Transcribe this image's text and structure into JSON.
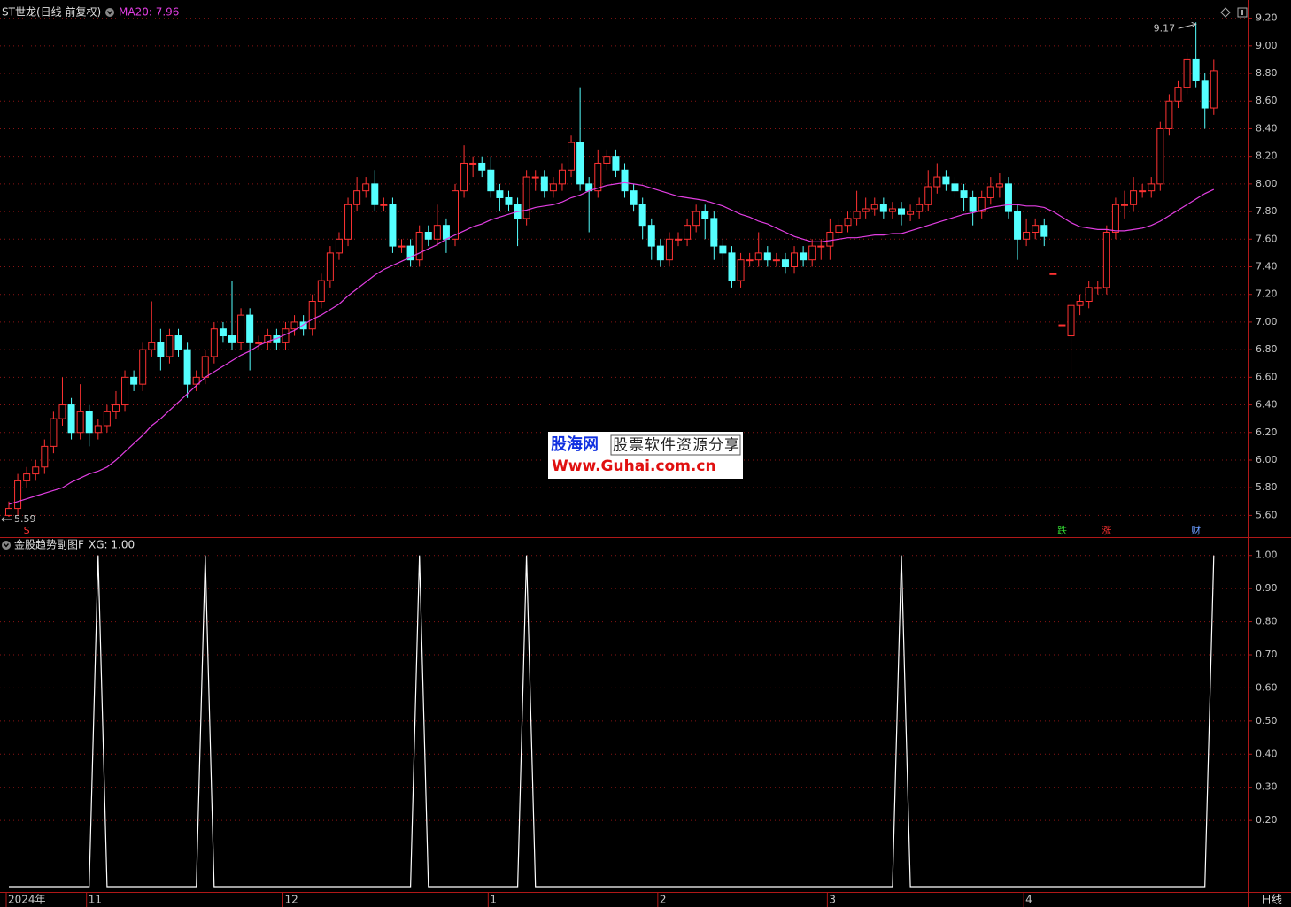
{
  "ui": {
    "period": "日线",
    "watermark_name": "股海网",
    "watermark_slogan": "股票软件资源分享",
    "watermark_url": "Www.Guhai.com.cn"
  },
  "chart_data": [
    {
      "type": "candlestick",
      "title": "ST世龙(日线 前复权)",
      "ma_legend": "MA20: 7.96",
      "up_color": "#ff3232",
      "down_color": "#54ffff",
      "ma_color": "#e23ee2",
      "ylim": [
        5.5,
        9.3
      ],
      "yticks": [
        {
          "value": 5.6,
          "label": "5.60"
        },
        {
          "value": 5.8,
          "label": "5.80"
        },
        {
          "value": 6.0,
          "label": "6.00"
        },
        {
          "value": 6.2,
          "label": "6.20"
        },
        {
          "value": 6.4,
          "label": "6.40"
        },
        {
          "value": 6.6,
          "label": "6.60"
        },
        {
          "value": 6.8,
          "label": "6.80"
        },
        {
          "value": 7.0,
          "label": "7.00"
        },
        {
          "value": 7.2,
          "label": "7.20"
        },
        {
          "value": 7.4,
          "label": "7.40"
        },
        {
          "value": 7.6,
          "label": "7.60"
        },
        {
          "value": 7.8,
          "label": "7.80"
        },
        {
          "value": 8.0,
          "label": "8.00"
        },
        {
          "value": 8.2,
          "label": "8.20"
        },
        {
          "value": 8.4,
          "label": "8.40"
        },
        {
          "value": 8.6,
          "label": "8.60"
        },
        {
          "value": 8.8,
          "label": "8.80"
        },
        {
          "value": 9.0,
          "label": "9.00"
        },
        {
          "value": 9.2,
          "label": "9.20"
        }
      ],
      "grid": true,
      "open": [
        5.6,
        5.65,
        5.85,
        5.9,
        5.95,
        6.1,
        6.3,
        6.4,
        6.2,
        6.35,
        6.2,
        6.25,
        6.35,
        6.4,
        6.6,
        6.55,
        6.8,
        6.85,
        6.75,
        6.9,
        6.8,
        6.55,
        6.6,
        6.75,
        6.95,
        6.9,
        6.85,
        7.05,
        6.85,
        6.85,
        6.9,
        6.85,
        6.95,
        7.0,
        6.95,
        7.15,
        7.3,
        7.5,
        7.6,
        7.85,
        7.95,
        8.0,
        7.85,
        7.85,
        7.55,
        7.55,
        7.45,
        7.65,
        7.6,
        7.7,
        7.6,
        7.95,
        8.15,
        8.15,
        8.1,
        7.95,
        7.9,
        7.85,
        7.75,
        8.05,
        8.05,
        7.95,
        8.0,
        8.1,
        8.3,
        8.0,
        7.95,
        8.15,
        8.2,
        8.1,
        7.95,
        7.85,
        7.7,
        7.55,
        7.45,
        7.6,
        7.6,
        7.7,
        7.8,
        7.75,
        7.55,
        7.5,
        7.3,
        7.45,
        7.45,
        7.5,
        7.45,
        7.45,
        7.4,
        7.5,
        7.45,
        7.55,
        7.55,
        7.65,
        7.7,
        7.75,
        7.8,
        7.82,
        7.85,
        7.8,
        7.82,
        7.78,
        7.8,
        7.85,
        7.98,
        8.05,
        8.0,
        7.95,
        7.9,
        7.8,
        7.9,
        7.98,
        8.0,
        7.8,
        7.6,
        7.65,
        7.7,
        7.35,
        6.98,
        6.9,
        7.12,
        7.15,
        7.25,
        7.25,
        7.65,
        7.85,
        7.85,
        7.95,
        7.95,
        8.0,
        8.4,
        8.6,
        8.7,
        8.9,
        8.75,
        8.55
      ],
      "high": [
        5.7,
        5.9,
        5.95,
        6.0,
        6.15,
        6.35,
        6.6,
        6.45,
        6.55,
        6.4,
        6.3,
        6.4,
        6.5,
        6.65,
        6.65,
        6.85,
        7.15,
        6.95,
        6.95,
        6.95,
        6.85,
        6.65,
        6.8,
        7.0,
        7.0,
        7.3,
        7.1,
        7.1,
        6.9,
        6.95,
        6.95,
        7.0,
        7.05,
        7.05,
        7.2,
        7.35,
        7.55,
        7.65,
        7.9,
        8.05,
        8.05,
        8.1,
        7.9,
        7.9,
        7.6,
        7.6,
        7.7,
        7.7,
        7.85,
        7.75,
        8.0,
        8.28,
        8.2,
        8.2,
        8.2,
        8.0,
        7.95,
        7.9,
        8.1,
        8.1,
        8.1,
        8.05,
        8.15,
        8.35,
        8.7,
        8.05,
        8.25,
        8.25,
        8.25,
        8.15,
        8.0,
        7.9,
        7.75,
        7.6,
        7.65,
        7.65,
        7.75,
        7.85,
        7.85,
        7.8,
        7.6,
        7.55,
        7.5,
        7.5,
        7.65,
        7.55,
        7.5,
        7.5,
        7.55,
        7.55,
        7.6,
        7.6,
        7.75,
        7.75,
        7.8,
        7.95,
        7.9,
        7.9,
        7.9,
        7.87,
        7.87,
        7.85,
        7.9,
        8.1,
        8.15,
        8.1,
        8.05,
        8.0,
        7.95,
        7.95,
        8.05,
        8.08,
        8.05,
        7.85,
        7.75,
        7.75,
        7.75,
        7.35,
        6.98,
        7.15,
        7.2,
        7.3,
        7.3,
        7.7,
        7.9,
        7.95,
        8.05,
        8.0,
        8.05,
        8.45,
        8.65,
        8.75,
        8.95,
        9.17,
        8.8,
        8.9
      ],
      "low": [
        5.59,
        5.6,
        5.8,
        5.85,
        5.9,
        6.05,
        6.25,
        6.15,
        6.15,
        6.1,
        6.15,
        6.2,
        6.3,
        6.35,
        6.5,
        6.5,
        6.75,
        6.65,
        6.7,
        6.75,
        6.45,
        6.5,
        6.55,
        6.7,
        6.85,
        6.8,
        6.8,
        6.65,
        6.8,
        6.8,
        6.8,
        6.8,
        6.9,
        6.9,
        6.9,
        7.1,
        7.25,
        7.45,
        7.55,
        7.8,
        7.9,
        7.8,
        7.8,
        7.5,
        7.5,
        7.4,
        7.4,
        7.55,
        7.55,
        7.5,
        7.55,
        7.9,
        8.05,
        8.05,
        7.9,
        7.8,
        7.8,
        7.55,
        7.7,
        7.95,
        7.9,
        7.9,
        7.95,
        8.05,
        7.95,
        7.65,
        7.9,
        8.1,
        8.05,
        7.9,
        7.8,
        7.6,
        7.45,
        7.4,
        7.4,
        7.55,
        7.55,
        7.65,
        7.6,
        7.45,
        7.4,
        7.25,
        7.25,
        7.4,
        7.4,
        7.4,
        7.4,
        7.35,
        7.35,
        7.4,
        7.4,
        7.45,
        7.45,
        7.6,
        7.65,
        7.7,
        7.75,
        7.77,
        7.75,
        7.75,
        7.7,
        7.73,
        7.75,
        7.8,
        7.93,
        7.95,
        7.9,
        7.8,
        7.7,
        7.75,
        7.85,
        7.9,
        7.75,
        7.45,
        7.55,
        7.6,
        7.55,
        7.35,
        6.98,
        6.6,
        7.05,
        7.1,
        7.2,
        7.2,
        7.6,
        7.75,
        7.8,
        7.9,
        7.9,
        7.95,
        8.35,
        8.55,
        8.65,
        8.7,
        8.4,
        8.5
      ],
      "close": [
        5.65,
        5.85,
        5.9,
        5.95,
        6.1,
        6.3,
        6.4,
        6.2,
        6.35,
        6.2,
        6.25,
        6.35,
        6.4,
        6.6,
        6.55,
        6.8,
        6.85,
        6.75,
        6.9,
        6.8,
        6.55,
        6.6,
        6.75,
        6.95,
        6.9,
        6.85,
        7.05,
        6.85,
        6.85,
        6.9,
        6.85,
        6.95,
        7.0,
        6.95,
        7.15,
        7.3,
        7.5,
        7.6,
        7.85,
        7.95,
        8.0,
        7.85,
        7.85,
        7.55,
        7.55,
        7.45,
        7.65,
        7.6,
        7.7,
        7.6,
        7.95,
        8.15,
        8.15,
        8.1,
        7.95,
        7.9,
        7.85,
        7.75,
        8.05,
        8.05,
        7.95,
        8.0,
        8.1,
        8.3,
        8.0,
        7.95,
        8.15,
        8.2,
        8.1,
        7.95,
        7.85,
        7.7,
        7.55,
        7.45,
        7.6,
        7.6,
        7.7,
        7.8,
        7.75,
        7.55,
        7.5,
        7.3,
        7.45,
        7.45,
        7.5,
        7.45,
        7.45,
        7.4,
        7.5,
        7.45,
        7.55,
        7.55,
        7.65,
        7.7,
        7.75,
        7.8,
        7.82,
        7.85,
        7.8,
        7.82,
        7.78,
        7.8,
        7.85,
        7.98,
        8.05,
        8.0,
        7.95,
        7.9,
        7.8,
        7.9,
        7.98,
        8.0,
        7.8,
        7.6,
        7.65,
        7.7,
        7.62,
        7.35,
        6.98,
        7.12,
        7.15,
        7.25,
        7.25,
        7.65,
        7.85,
        7.85,
        7.95,
        7.95,
        8.0,
        8.4,
        8.6,
        8.7,
        8.9,
        8.75,
        8.55,
        8.82
      ],
      "ma20": [
        5.68,
        5.7,
        5.72,
        5.74,
        5.76,
        5.78,
        5.8,
        5.84,
        5.87,
        5.9,
        5.92,
        5.95,
        6.0,
        6.06,
        6.12,
        6.18,
        6.25,
        6.3,
        6.36,
        6.42,
        6.48,
        6.54,
        6.6,
        6.64,
        6.68,
        6.72,
        6.76,
        6.79,
        6.83,
        6.86,
        6.88,
        6.91,
        6.94,
        6.98,
        7.02,
        7.05,
        7.09,
        7.13,
        7.19,
        7.24,
        7.29,
        7.34,
        7.38,
        7.41,
        7.44,
        7.47,
        7.5,
        7.53,
        7.56,
        7.6,
        7.63,
        7.66,
        7.69,
        7.71,
        7.74,
        7.76,
        7.78,
        7.8,
        7.81,
        7.83,
        7.84,
        7.85,
        7.87,
        7.9,
        7.92,
        7.95,
        7.97,
        7.99,
        8.0,
        8.01,
        8.0,
        7.99,
        7.97,
        7.95,
        7.93,
        7.91,
        7.9,
        7.89,
        7.88,
        7.86,
        7.84,
        7.81,
        7.78,
        7.76,
        7.73,
        7.71,
        7.68,
        7.65,
        7.62,
        7.6,
        7.58,
        7.58,
        7.59,
        7.6,
        7.61,
        7.61,
        7.62,
        7.63,
        7.63,
        7.64,
        7.64,
        7.66,
        7.68,
        7.7,
        7.72,
        7.74,
        7.76,
        7.78,
        7.79,
        7.81,
        7.83,
        7.84,
        7.85,
        7.85,
        7.84,
        7.84,
        7.83,
        7.8,
        7.76,
        7.72,
        7.69,
        7.68,
        7.67,
        7.67,
        7.66,
        7.66,
        7.67,
        7.68,
        7.7,
        7.73,
        7.77,
        7.81,
        7.85,
        7.89,
        7.93,
        7.96
      ],
      "max_index": 133,
      "min_index": 0,
      "markers": [
        {
          "index": 2,
          "label": "S",
          "color": "#ff3232"
        },
        {
          "index": 118,
          "label": "跌",
          "color": "#30d030"
        },
        {
          "index": 123,
          "label": "涨",
          "color": "#ff3232"
        },
        {
          "index": 133,
          "label": "财",
          "color": "#6a9cff"
        }
      ]
    },
    {
      "type": "line",
      "title": "金股趋势副图F",
      "legend": "XG: 1.00",
      "color": "#ffffff",
      "ylim": [
        0,
        1.05
      ],
      "yticks": [
        {
          "value": 0.2,
          "label": "0.20"
        },
        {
          "value": 0.3,
          "label": "0.30"
        },
        {
          "value": 0.4,
          "label": "0.40"
        },
        {
          "value": 0.5,
          "label": "0.50"
        },
        {
          "value": 0.6,
          "label": "0.60"
        },
        {
          "value": 0.7,
          "label": "0.70"
        },
        {
          "value": 0.8,
          "label": "0.80"
        },
        {
          "value": 0.9,
          "label": "0.90"
        },
        {
          "value": 1,
          "label": "1.00"
        }
      ],
      "grid": true,
      "values": [
        0,
        0,
        0,
        0,
        0,
        0,
        0,
        0,
        0,
        0,
        1,
        0,
        0,
        0,
        0,
        0,
        0,
        0,
        0,
        0,
        0,
        0,
        1,
        0,
        0,
        0,
        0,
        0,
        0,
        0,
        0,
        0,
        0,
        0,
        0,
        0,
        0,
        0,
        0,
        0,
        0,
        0,
        0,
        0,
        0,
        0,
        1,
        0,
        0,
        0,
        0,
        0,
        0,
        0,
        0,
        0,
        0,
        0,
        1,
        0,
        0,
        0,
        0,
        0,
        0,
        0,
        0,
        0,
        0,
        0,
        0,
        0,
        0,
        0,
        0,
        0,
        0,
        0,
        0,
        0,
        0,
        0,
        0,
        0,
        0,
        0,
        0,
        0,
        0,
        0,
        0,
        0,
        0,
        0,
        0,
        0,
        0,
        0,
        0,
        0,
        1,
        0,
        0,
        0,
        0,
        0,
        0,
        0,
        0,
        0,
        0,
        0,
        0,
        0,
        0,
        0,
        0,
        0,
        0,
        0,
        0,
        0,
        0,
        0,
        0,
        0,
        0,
        0,
        0,
        0,
        0,
        0,
        0,
        0,
        0,
        1
      ],
      "xticks": [
        {
          "value": 0,
          "label": "2024年"
        },
        {
          "value": 9,
          "label": "11"
        },
        {
          "value": 31,
          "label": "12"
        },
        {
          "value": 54,
          "label": "1"
        },
        {
          "value": 73,
          "label": "2"
        },
        {
          "value": 92,
          "label": "3"
        },
        {
          "value": 114,
          "label": "4"
        }
      ]
    }
  ]
}
